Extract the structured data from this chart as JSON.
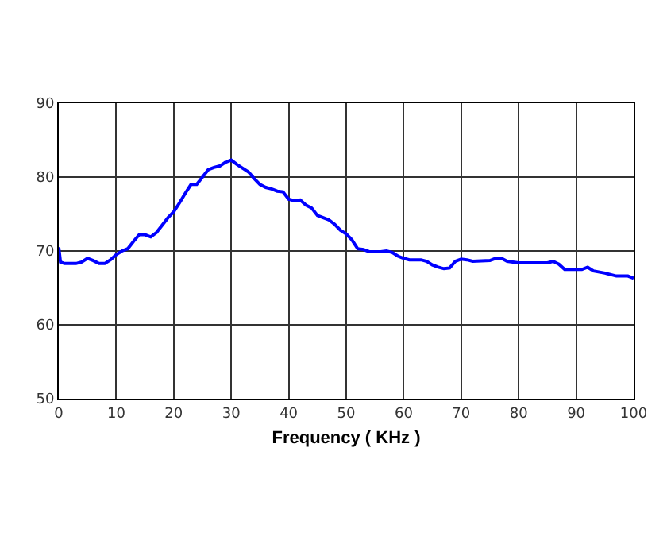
{
  "chart_data": {
    "type": "line",
    "xlabel": "Frequency ( KHz )",
    "xlim": [
      0,
      100
    ],
    "xticks": [
      0,
      10,
      20,
      30,
      40,
      50,
      60,
      70,
      80,
      90,
      100
    ],
    "ylim": [
      50,
      90
    ],
    "yticks": [
      50,
      60,
      70,
      80,
      90
    ],
    "grid": true,
    "line_style": "solid",
    "x": [
      0,
      0.3,
      1,
      3,
      4,
      5,
      6,
      7,
      8,
      9,
      10,
      11,
      12,
      13,
      14,
      15,
      16,
      17,
      18,
      19,
      20,
      21,
      22,
      23,
      24,
      25,
      26,
      27,
      28,
      29,
      30,
      31,
      32,
      33,
      34,
      35,
      36,
      37,
      38,
      39,
      40,
      41,
      42,
      43,
      44,
      45,
      46,
      47,
      48,
      49,
      50,
      51,
      52,
      53,
      54,
      56,
      57,
      58,
      59,
      60,
      61,
      63,
      64,
      65,
      66,
      67,
      68,
      69,
      70,
      71,
      72,
      75,
      76,
      77,
      78,
      80,
      85,
      86,
      87,
      88,
      91,
      92,
      93,
      95,
      97,
      99,
      100
    ],
    "series": [
      {
        "color": "#0000ff",
        "values": [
          70.5,
          68.5,
          68.3,
          68.3,
          68.5,
          69,
          68.7,
          68.3,
          68.3,
          68.8,
          69.5,
          70,
          70.3,
          71.3,
          72.2,
          72.2,
          71.9,
          72.5,
          73.5,
          74.5,
          75.3,
          76.5,
          77.8,
          79,
          79,
          80,
          81,
          81.3,
          81.5,
          82,
          82.3,
          81.7,
          81.2,
          80.7,
          79.8,
          79,
          78.6,
          78.4,
          78.1,
          78,
          77,
          76.8,
          76.9,
          76.2,
          75.8,
          74.8,
          74.5,
          74.2,
          73.6,
          72.8,
          72.3,
          71.5,
          70.3,
          70.2,
          69.9,
          69.9,
          70,
          69.8,
          69.3,
          69,
          68.8,
          68.8,
          68.6,
          68.1,
          67.8,
          67.6,
          67.7,
          68.6,
          68.9,
          68.8,
          68.6,
          68.7,
          69,
          69,
          68.6,
          68.4,
          68.4,
          68.6,
          68.2,
          67.5,
          67.5,
          67.8,
          67.3,
          67,
          66.6,
          66.6,
          66.3
        ]
      }
    ]
  }
}
